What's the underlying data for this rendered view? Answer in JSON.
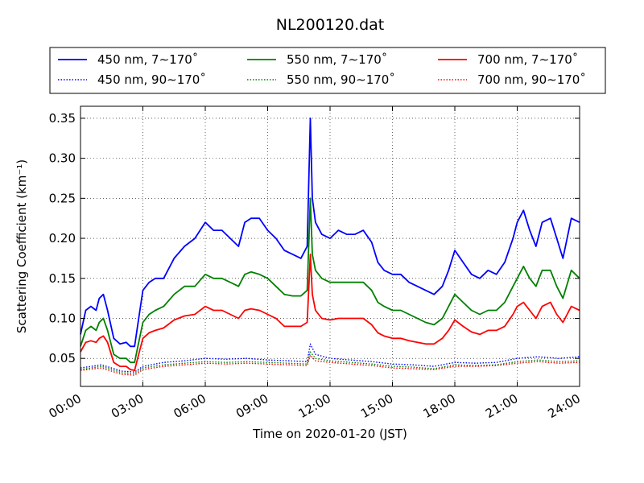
{
  "chart_data": {
    "type": "line",
    "title": "NL200120.dat",
    "xlabel": "Time on 2020-01-20 (JST)",
    "ylabel": "Scattering Coefficient (km⁻¹)",
    "x_unit": "hours",
    "xlim": [
      0,
      24
    ],
    "ylim": [
      0.015,
      0.365
    ],
    "x_ticks": [
      0,
      3,
      6,
      9,
      12,
      15,
      18,
      21,
      24
    ],
    "x_tick_labels": [
      "00:00",
      "03:00",
      "06:00",
      "09:00",
      "12:00",
      "15:00",
      "18:00",
      "21:00",
      "24:00"
    ],
    "y_ticks": [
      0.05,
      0.1,
      0.15,
      0.2,
      0.25,
      0.3,
      0.35
    ],
    "y_tick_labels": [
      "0.05",
      "0.10",
      "0.15",
      "0.20",
      "0.25",
      "0.30",
      "0.35"
    ],
    "grid": true,
    "legend_position": "top, above plot",
    "series": [
      {
        "name": "450 nm, 7∼170˚",
        "color": "#0000ff",
        "style": "solid",
        "x": [
          0,
          0.25,
          0.5,
          0.75,
          0.9,
          1.1,
          1.3,
          1.6,
          1.9,
          2.2,
          2.4,
          2.6,
          2.8,
          3.0,
          3.3,
          3.6,
          4.0,
          4.5,
          5.0,
          5.5,
          6.0,
          6.4,
          6.8,
          7.2,
          7.6,
          7.9,
          8.2,
          8.6,
          9.0,
          9.4,
          9.8,
          10.2,
          10.6,
          10.9,
          11.05,
          11.15,
          11.3,
          11.6,
          12.0,
          12.4,
          12.8,
          13.2,
          13.6,
          14.0,
          14.3,
          14.6,
          15.0,
          15.4,
          15.8,
          16.2,
          16.6,
          17.0,
          17.4,
          17.7,
          18.0,
          18.4,
          18.8,
          19.2,
          19.6,
          20.0,
          20.4,
          20.8,
          21.0,
          21.3,
          21.6,
          21.9,
          22.2,
          22.6,
          22.9,
          23.2,
          23.6,
          24.0
        ],
        "values": [
          0.08,
          0.11,
          0.115,
          0.11,
          0.125,
          0.13,
          0.11,
          0.075,
          0.068,
          0.07,
          0.065,
          0.065,
          0.1,
          0.135,
          0.145,
          0.15,
          0.15,
          0.175,
          0.19,
          0.2,
          0.22,
          0.21,
          0.21,
          0.2,
          0.19,
          0.22,
          0.225,
          0.225,
          0.21,
          0.2,
          0.185,
          0.18,
          0.175,
          0.19,
          0.35,
          0.25,
          0.22,
          0.205,
          0.2,
          0.21,
          0.205,
          0.205,
          0.21,
          0.195,
          0.17,
          0.16,
          0.155,
          0.155,
          0.145,
          0.14,
          0.135,
          0.13,
          0.14,
          0.16,
          0.185,
          0.17,
          0.155,
          0.15,
          0.16,
          0.155,
          0.17,
          0.2,
          0.22,
          0.235,
          0.21,
          0.19,
          0.22,
          0.225,
          0.2,
          0.175,
          0.225,
          0.22
        ]
      },
      {
        "name": "450 nm, 90∼170˚",
        "color": "#0000ff",
        "style": "dotted",
        "x": [
          0,
          1.0,
          2.0,
          2.6,
          3.0,
          4.0,
          5.0,
          6.0,
          7.0,
          8.0,
          9.0,
          10.0,
          10.9,
          11.05,
          11.3,
          12.0,
          13.0,
          14.0,
          15.0,
          16.0,
          17.0,
          18.0,
          19.0,
          20.0,
          21.0,
          22.0,
          23.0,
          24.0
        ],
        "values": [
          0.038,
          0.042,
          0.034,
          0.033,
          0.04,
          0.045,
          0.047,
          0.05,
          0.049,
          0.05,
          0.048,
          0.047,
          0.046,
          0.068,
          0.055,
          0.05,
          0.048,
          0.046,
          0.043,
          0.042,
          0.04,
          0.045,
          0.044,
          0.045,
          0.05,
          0.052,
          0.05,
          0.052
        ]
      },
      {
        "name": "550 nm, 7∼170˚",
        "color": "#008000",
        "style": "solid",
        "x": [
          0,
          0.25,
          0.5,
          0.75,
          0.9,
          1.1,
          1.3,
          1.6,
          1.9,
          2.2,
          2.4,
          2.6,
          2.8,
          3.0,
          3.3,
          3.6,
          4.0,
          4.5,
          5.0,
          5.5,
          6.0,
          6.4,
          6.8,
          7.2,
          7.6,
          7.9,
          8.2,
          8.6,
          9.0,
          9.4,
          9.8,
          10.2,
          10.6,
          10.9,
          11.05,
          11.15,
          11.3,
          11.6,
          12.0,
          12.4,
          12.8,
          13.2,
          13.6,
          14.0,
          14.3,
          14.6,
          15.0,
          15.4,
          15.8,
          16.2,
          16.6,
          17.0,
          17.4,
          17.7,
          18.0,
          18.4,
          18.8,
          19.2,
          19.6,
          20.0,
          20.4,
          20.8,
          21.0,
          21.3,
          21.6,
          21.9,
          22.2,
          22.6,
          22.9,
          23.2,
          23.6,
          24.0
        ],
        "values": [
          0.065,
          0.085,
          0.09,
          0.085,
          0.095,
          0.1,
          0.085,
          0.055,
          0.05,
          0.05,
          0.045,
          0.045,
          0.07,
          0.095,
          0.105,
          0.11,
          0.115,
          0.13,
          0.14,
          0.14,
          0.155,
          0.15,
          0.15,
          0.145,
          0.14,
          0.155,
          0.158,
          0.155,
          0.15,
          0.14,
          0.13,
          0.128,
          0.128,
          0.135,
          0.25,
          0.18,
          0.16,
          0.15,
          0.145,
          0.145,
          0.145,
          0.145,
          0.145,
          0.135,
          0.12,
          0.115,
          0.11,
          0.11,
          0.105,
          0.1,
          0.095,
          0.092,
          0.1,
          0.115,
          0.13,
          0.12,
          0.11,
          0.105,
          0.11,
          0.11,
          0.12,
          0.14,
          0.15,
          0.165,
          0.15,
          0.14,
          0.16,
          0.16,
          0.14,
          0.125,
          0.16,
          0.15
        ]
      },
      {
        "name": "550 nm, 90∼170˚",
        "color": "#008000",
        "style": "dotted",
        "x": [
          0,
          1.0,
          2.0,
          2.6,
          3.0,
          4.0,
          5.0,
          6.0,
          7.0,
          8.0,
          9.0,
          10.0,
          10.9,
          11.05,
          11.3,
          12.0,
          13.0,
          14.0,
          15.0,
          16.0,
          17.0,
          18.0,
          19.0,
          20.0,
          21.0,
          22.0,
          23.0,
          24.0
        ],
        "values": [
          0.036,
          0.04,
          0.032,
          0.031,
          0.038,
          0.042,
          0.044,
          0.046,
          0.045,
          0.046,
          0.045,
          0.044,
          0.043,
          0.058,
          0.05,
          0.047,
          0.045,
          0.043,
          0.04,
          0.039,
          0.037,
          0.042,
          0.041,
          0.042,
          0.046,
          0.048,
          0.046,
          0.047
        ]
      },
      {
        "name": "700 nm, 7∼170˚",
        "color": "#ff0000",
        "style": "solid",
        "x": [
          0,
          0.25,
          0.5,
          0.75,
          0.9,
          1.1,
          1.3,
          1.6,
          1.9,
          2.2,
          2.4,
          2.6,
          2.8,
          3.0,
          3.3,
          3.6,
          4.0,
          4.5,
          5.0,
          5.5,
          6.0,
          6.4,
          6.8,
          7.2,
          7.6,
          7.9,
          8.2,
          8.6,
          9.0,
          9.4,
          9.8,
          10.2,
          10.6,
          10.9,
          11.05,
          11.15,
          11.3,
          11.6,
          12.0,
          12.4,
          12.8,
          13.2,
          13.6,
          14.0,
          14.3,
          14.6,
          15.0,
          15.4,
          15.8,
          16.2,
          16.6,
          17.0,
          17.4,
          17.7,
          18.0,
          18.4,
          18.8,
          19.2,
          19.6,
          20.0,
          20.4,
          20.8,
          21.0,
          21.3,
          21.6,
          21.9,
          22.2,
          22.6,
          22.9,
          23.2,
          23.6,
          24.0
        ],
        "values": [
          0.058,
          0.07,
          0.072,
          0.07,
          0.075,
          0.078,
          0.07,
          0.045,
          0.04,
          0.04,
          0.036,
          0.035,
          0.055,
          0.075,
          0.082,
          0.085,
          0.088,
          0.098,
          0.103,
          0.105,
          0.115,
          0.11,
          0.11,
          0.105,
          0.1,
          0.11,
          0.112,
          0.11,
          0.105,
          0.1,
          0.09,
          0.09,
          0.09,
          0.095,
          0.18,
          0.13,
          0.11,
          0.1,
          0.098,
          0.1,
          0.1,
          0.1,
          0.1,
          0.092,
          0.082,
          0.078,
          0.075,
          0.075,
          0.072,
          0.07,
          0.068,
          0.068,
          0.075,
          0.085,
          0.098,
          0.09,
          0.083,
          0.08,
          0.085,
          0.085,
          0.09,
          0.105,
          0.115,
          0.12,
          0.11,
          0.1,
          0.115,
          0.12,
          0.105,
          0.095,
          0.115,
          0.11
        ]
      },
      {
        "name": "700 nm, 90∼170˚",
        "color": "#ff0000",
        "style": "dotted",
        "x": [
          0,
          1.0,
          2.0,
          2.6,
          3.0,
          4.0,
          5.0,
          6.0,
          7.0,
          8.0,
          9.0,
          10.0,
          10.9,
          11.05,
          11.3,
          12.0,
          13.0,
          14.0,
          15.0,
          16.0,
          17.0,
          18.0,
          19.0,
          20.0,
          21.0,
          22.0,
          23.0,
          24.0
        ],
        "values": [
          0.035,
          0.038,
          0.03,
          0.029,
          0.036,
          0.04,
          0.042,
          0.044,
          0.043,
          0.044,
          0.043,
          0.042,
          0.041,
          0.054,
          0.047,
          0.045,
          0.043,
          0.041,
          0.038,
          0.037,
          0.036,
          0.04,
          0.04,
          0.041,
          0.044,
          0.046,
          0.044,
          0.045
        ]
      }
    ]
  }
}
